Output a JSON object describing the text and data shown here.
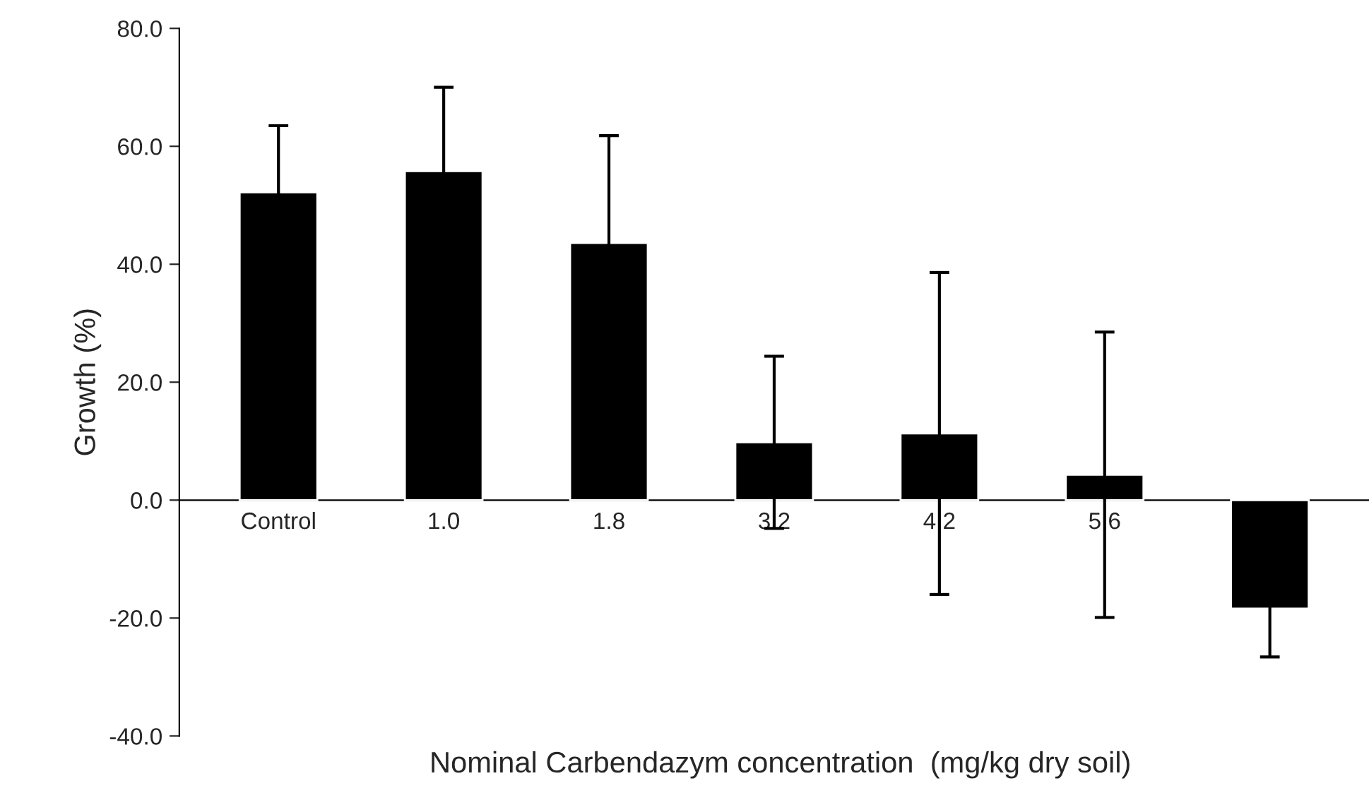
{
  "chart_data": {
    "type": "bar",
    "xlabel": "Nominal Carbendazym concentration  (mg/kg dry soil)",
    "ylabel": "Growth (%)",
    "categories": [
      "Control",
      "1.0",
      "1.8",
      "3.2",
      "4.2",
      "5.6",
      null
    ],
    "values": [
      52.2,
      55.8,
      43.6,
      9.8,
      11.3,
      4.3,
      -18.4
    ],
    "errors": [
      11.3,
      14.2,
      18.2,
      14.6,
      27.3,
      24.2,
      8.2
    ],
    "color": "#000000",
    "ylim": [
      -40,
      80
    ],
    "yticks": [
      {
        "value": -40,
        "label": "-40.0"
      },
      {
        "value": -20,
        "label": "-20.0"
      },
      {
        "value": 0,
        "label": "0.0"
      },
      {
        "value": 20,
        "label": "20.0"
      },
      {
        "value": 40,
        "label": "40.0"
      },
      {
        "value": 60,
        "label": "60.0"
      },
      {
        "value": 80,
        "label": "80.0"
      }
    ],
    "grid": false
  }
}
